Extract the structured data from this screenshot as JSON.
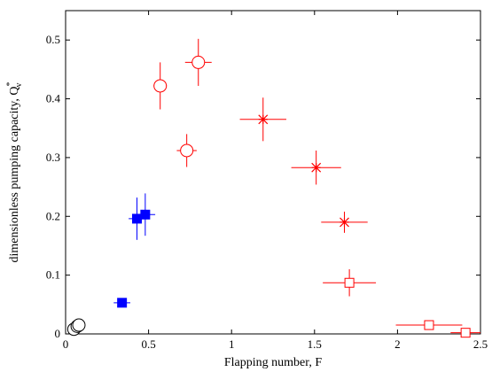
{
  "chart_data": {
    "type": "scatter",
    "title": "",
    "xlabel": "Flapping number, F",
    "ylabel": "dimensionless pumping capacity, Q",
    "ylabel_sup": "*",
    "ylabel_sub": "v",
    "xlim": [
      0,
      2.5
    ],
    "ylim": [
      0,
      0.55
    ],
    "xticks": [
      0,
      0.5,
      1,
      1.5,
      2,
      2.5
    ],
    "xtick_labels": [
      "0",
      "0.5",
      "1",
      "1.5",
      "2",
      "2.5"
    ],
    "yticks": [
      0,
      0.1,
      0.2,
      0.3,
      0.4,
      0.5
    ],
    "ytick_labels": [
      "0",
      "0.1",
      "0.2",
      "0.3",
      "0.4",
      "0.5"
    ],
    "grid": false,
    "legend": "none",
    "series": [
      {
        "color": "#000000",
        "marker": "open-circle",
        "points": [
          {
            "x": 0.05,
            "y": 0.008,
            "xerr": 0,
            "yerr": 0
          },
          {
            "x": 0.07,
            "y": 0.013,
            "xerr": 0,
            "yerr": 0
          },
          {
            "x": 0.08,
            "y": 0.015,
            "xerr": 0,
            "yerr": 0
          }
        ]
      },
      {
        "color": "#0000ff",
        "marker": "filled-square",
        "points": [
          {
            "x": 0.34,
            "y": 0.053,
            "xerr": 0.05,
            "yerr": 0.005
          },
          {
            "x": 0.43,
            "y": 0.196,
            "xerr": 0.05,
            "yerr": 0.036
          },
          {
            "x": 0.48,
            "y": 0.203,
            "xerr": 0.06,
            "yerr": 0.036
          }
        ]
      },
      {
        "color": "#ff0000",
        "marker": "open-circle",
        "points": [
          {
            "x": 0.57,
            "y": 0.422,
            "xerr": 0.04,
            "yerr": 0.04
          },
          {
            "x": 0.73,
            "y": 0.312,
            "xerr": 0.06,
            "yerr": 0.028
          },
          {
            "x": 0.8,
            "y": 0.462,
            "xerr": 0.08,
            "yerr": 0.04
          }
        ]
      },
      {
        "color": "#ff0000",
        "marker": "star",
        "points": [
          {
            "x": 1.19,
            "y": 0.365,
            "xerr": 0.14,
            "yerr": 0.037
          },
          {
            "x": 1.51,
            "y": 0.283,
            "xerr": 0.15,
            "yerr": 0.029
          },
          {
            "x": 1.68,
            "y": 0.19,
            "xerr": 0.14,
            "yerr": 0.018
          }
        ]
      },
      {
        "color": "#ff0000",
        "marker": "open-square",
        "points": [
          {
            "x": 1.71,
            "y": 0.087,
            "xerr": 0.16,
            "yerr": 0.023
          },
          {
            "x": 2.19,
            "y": 0.015,
            "xerr": 0.2,
            "yerr": 0
          },
          {
            "x": 2.41,
            "y": 0.002,
            "xerr": 0.09,
            "yerr": 0
          }
        ]
      }
    ]
  }
}
